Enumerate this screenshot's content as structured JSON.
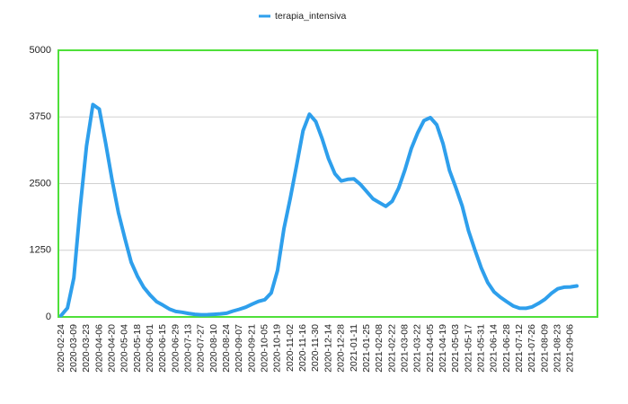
{
  "chart_data": {
    "type": "line",
    "categories": [
      "2020-02-24",
      null,
      "2020-03-09",
      null,
      "2020-03-23",
      null,
      "2020-04-06",
      null,
      "2020-04-20",
      null,
      "2020-05-04",
      null,
      "2020-05-18",
      null,
      "2020-06-01",
      null,
      "2020-06-15",
      null,
      "2020-06-29",
      null,
      "2020-07-13",
      null,
      "2020-07-27",
      null,
      "2020-08-10",
      null,
      "2020-08-24",
      null,
      "2020-09-07",
      null,
      "2020-09-21",
      null,
      "2020-10-05",
      null,
      "2020-10-19",
      null,
      "2020-11-02",
      null,
      "2020-11-16",
      null,
      "2020-11-30",
      null,
      "2020-12-14",
      null,
      "2020-12-28",
      null,
      "2021-01-11",
      null,
      "2021-01-25",
      null,
      "2021-02-08",
      null,
      "2021-02-22",
      null,
      "2021-03-08",
      null,
      "2021-03-22",
      null,
      "2021-04-05",
      null,
      "2021-04-19",
      null,
      "2021-05-03",
      null,
      "2021-05-17",
      null,
      "2021-05-31",
      null,
      "2021-06-14",
      null,
      "2021-06-28",
      null,
      "2021-07-12",
      null,
      "2021-07-26",
      null,
      "2021-08-09",
      null,
      "2021-08-23",
      null,
      "2021-09-06",
      null
    ],
    "series": [
      {
        "name": "terapia_intensiva",
        "color": "#2e9fec",
        "values": [
          27,
          166,
          733,
          2060,
          3204,
          3981,
          3898,
          3260,
          2573,
          1956,
          1479,
          1027,
          762,
          553,
          408,
          287,
          220,
          148,
          103,
          87,
          65,
          49,
          41,
          42,
          48,
          58,
          69,
          109,
          143,
          182,
          239,
          291,
          323,
          452,
          870,
          1651,
          2225,
          2849,
          3492,
          3801,
          3663,
          3345,
          2969,
          2687,
          2549,
          2579,
          2587,
          2487,
          2352,
          2214,
          2143,
          2074,
          2168,
          2411,
          2756,
          3157,
          3448,
          3681,
          3737,
          3603,
          3244,
          2748,
          2423,
          2083,
          1615,
          1256,
          915,
          647,
          470,
          368,
          287,
          207,
          163,
          161,
          189,
          254,
          331,
          441,
          527,
          557,
          563,
          580
        ]
      }
    ],
    "ylim": [
      0,
      5000
    ],
    "yticks": [
      0,
      1250,
      2500,
      3750,
      5000
    ],
    "grid": true,
    "legend": "top",
    "frame_color": "#4fe03a"
  }
}
